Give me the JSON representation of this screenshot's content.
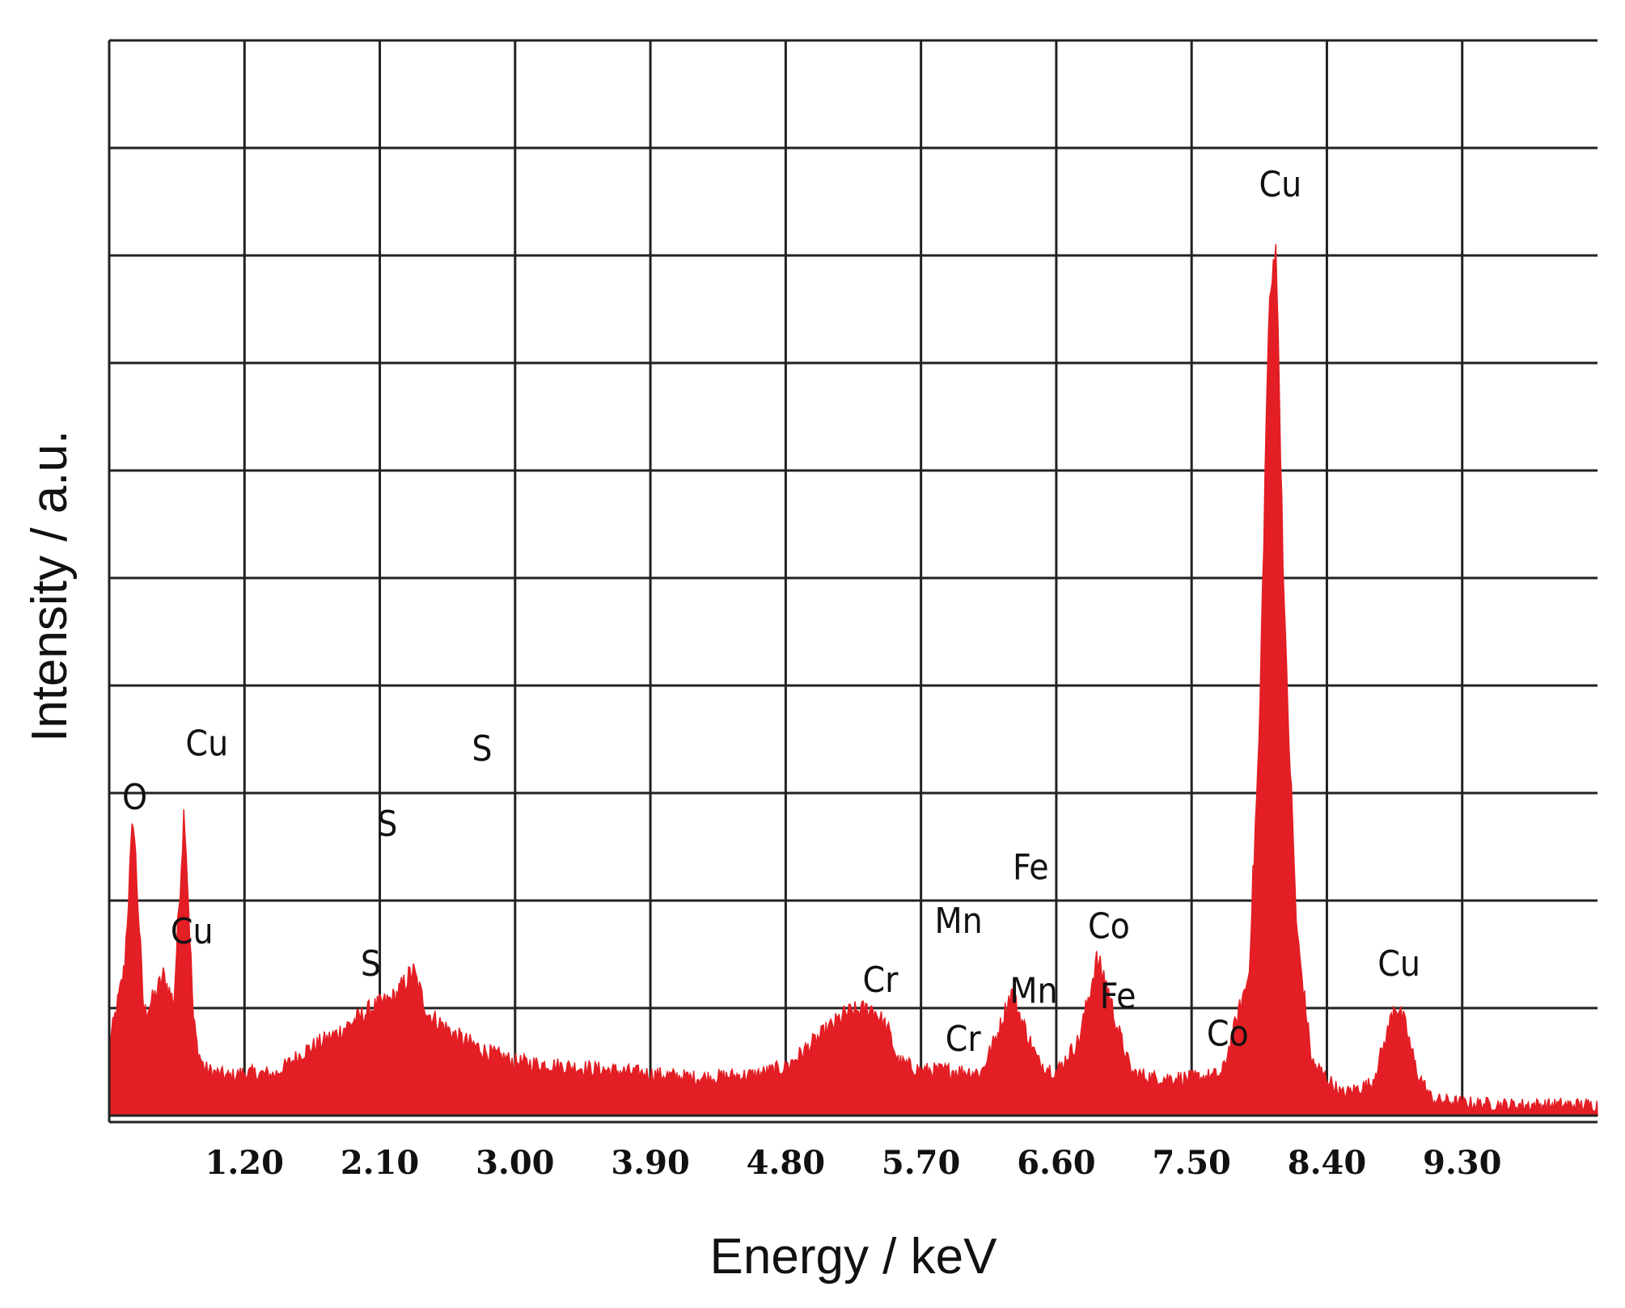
{
  "chart_data": {
    "type": "area",
    "title": "",
    "xlabel": "Energy / keV",
    "ylabel": "Intensity / a.u.",
    "xlim": [
      0.3,
      10.2
    ],
    "ylim": [
      0,
      10
    ],
    "grid": true,
    "x_ticks": [
      1.2,
      2.1,
      3.0,
      3.9,
      4.8,
      5.7,
      6.6,
      7.5,
      8.4,
      9.3
    ],
    "x_tick_labels": [
      "1.20",
      "2.10",
      "3.00",
      "3.90",
      "4.80",
      "5.70",
      "6.60",
      "7.50",
      "8.40",
      "9.30"
    ],
    "y_gridlines": 10,
    "color": "#e31e24",
    "series": [
      {
        "x": [
          0.3,
          0.4,
          0.46,
          0.5,
          0.53,
          0.6,
          0.66,
          0.73,
          0.8,
          0.86,
          0.89,
          0.93,
          0.96,
          1.0,
          1.05,
          1.1,
          1.2,
          1.4,
          1.6,
          1.8,
          1.95,
          2.05,
          2.2,
          2.32,
          2.42,
          2.6,
          2.8,
          3.0,
          3.4,
          3.8,
          4.2,
          4.6,
          4.8,
          5.0,
          5.2,
          5.38,
          5.48,
          5.55,
          5.7,
          5.9,
          6.1,
          6.22,
          6.3,
          6.38,
          6.48,
          6.6,
          6.75,
          6.87,
          6.93,
          7.0,
          7.1,
          7.25,
          7.5,
          7.7,
          7.88,
          7.95,
          8.01,
          8.06,
          8.12,
          8.2,
          8.3,
          8.5,
          8.7,
          8.8,
          8.85,
          8.92,
          9.0,
          9.1,
          9.3,
          9.6,
          10.0,
          10.2
        ],
        "y": [
          0.65,
          1.35,
          2.8,
          1.75,
          0.95,
          1.1,
          1.3,
          1.05,
          2.9,
          0.9,
          0.6,
          0.45,
          0.42,
          0.4,
          0.38,
          0.36,
          0.4,
          0.38,
          0.6,
          0.75,
          0.9,
          1.0,
          1.1,
          1.35,
          0.95,
          0.75,
          0.6,
          0.5,
          0.45,
          0.4,
          0.35,
          0.38,
          0.45,
          0.7,
          0.95,
          1.0,
          0.8,
          0.5,
          0.42,
          0.42,
          0.4,
          0.8,
          1.15,
          0.85,
          0.5,
          0.4,
          0.7,
          1.45,
          1.25,
          0.85,
          0.4,
          0.35,
          0.35,
          0.38,
          1.3,
          3.5,
          7.3,
          8.2,
          4.5,
          1.7,
          0.5,
          0.2,
          0.3,
          0.75,
          1.05,
          0.85,
          0.4,
          0.15,
          0.12,
          0.1,
          0.1,
          0.1
        ]
      }
    ],
    "annotations": [
      {
        "text": "O",
        "x": 0.47,
        "y": 2.85
      },
      {
        "text": "Cu",
        "x": 0.95,
        "y": 3.35
      },
      {
        "text": "Cu",
        "x": 0.85,
        "y": 1.6
      },
      {
        "text": "S",
        "x": 2.04,
        "y": 1.3
      },
      {
        "text": "S",
        "x": 2.15,
        "y": 2.6
      },
      {
        "text": "S",
        "x": 2.78,
        "y": 3.3
      },
      {
        "text": "Cr",
        "x": 5.43,
        "y": 1.15
      },
      {
        "text": "Cr",
        "x": 5.98,
        "y": 0.6
      },
      {
        "text": "Mn",
        "x": 5.95,
        "y": 1.7
      },
      {
        "text": "Mn",
        "x": 6.45,
        "y": 1.05
      },
      {
        "text": "Fe",
        "x": 6.43,
        "y": 2.2
      },
      {
        "text": "Fe",
        "x": 7.01,
        "y": 1.0
      },
      {
        "text": "Co",
        "x": 6.95,
        "y": 1.65
      },
      {
        "text": "Co",
        "x": 7.74,
        "y": 0.65
      },
      {
        "text": "Cu",
        "x": 8.09,
        "y": 8.55
      },
      {
        "text": "Cu",
        "x": 8.88,
        "y": 1.3
      }
    ]
  }
}
